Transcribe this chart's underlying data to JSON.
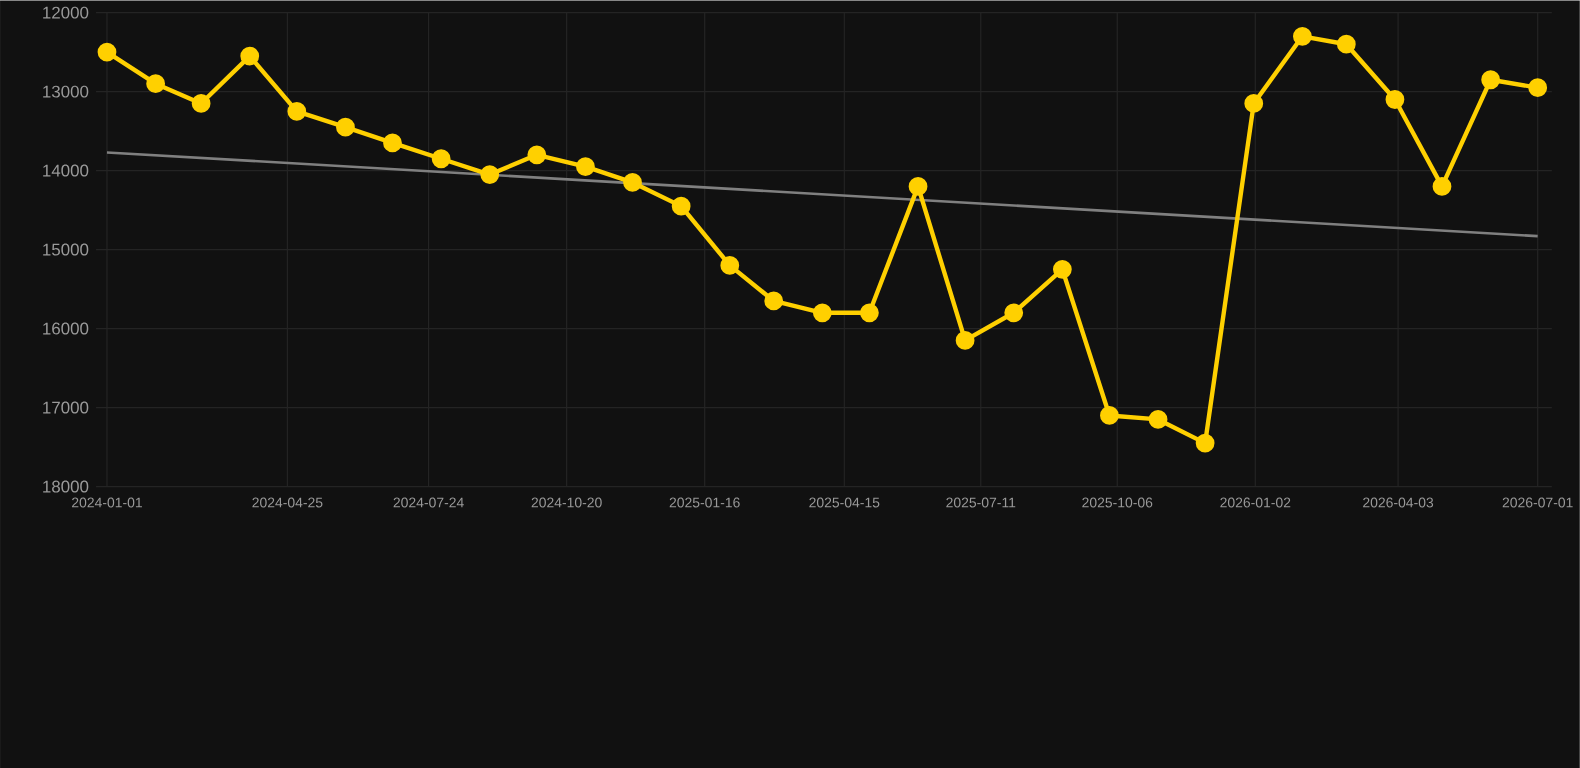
{
  "chart_data": {
    "type": "line",
    "x": [
      "2024-01-01",
      "2024-02-01",
      "2024-03-01",
      "2024-04-01",
      "2024-05-01",
      "2024-06-01",
      "2024-07-01",
      "2024-08-01",
      "2024-09-01",
      "2024-10-01",
      "2024-11-01",
      "2024-12-01",
      "2025-01-01",
      "2025-02-01",
      "2025-03-01",
      "2025-04-01",
      "2025-05-01",
      "2025-06-01",
      "2025-07-01",
      "2025-08-01",
      "2025-09-01",
      "2025-10-01",
      "2025-11-01",
      "2025-12-01",
      "2026-01-01",
      "2026-02-01",
      "2026-03-01",
      "2026-04-01",
      "2026-05-01",
      "2026-06-01",
      "2026-07-01"
    ],
    "series": [
      {
        "color": "#ffd000",
        "values": [
          12500,
          12900,
          13150,
          12550,
          13250,
          13450,
          13650,
          13850,
          14050,
          13800,
          13950,
          14150,
          14450,
          15200,
          15650,
          15800,
          15800,
          14200,
          16150,
          15800,
          15250,
          17100,
          17150,
          17450,
          13150,
          12300,
          12400,
          13100,
          14200,
          12850,
          12950
        ]
      },
      {
        "type": "line",
        "color": "#808080",
        "marker": "none",
        "x": [
          "2024-01-01",
          "2026-07-01"
        ],
        "values": [
          13770,
          14830
        ]
      }
    ],
    "xlim": [
      "2023-12-25",
      "2026-07-10"
    ],
    "xticks": [
      "2024-01-01",
      "2024-04-25",
      "2024-07-24",
      "2024-10-20",
      "2025-01-16",
      "2025-04-15",
      "2025-07-11",
      "2025-10-06",
      "2026-01-02",
      "2026-04-03",
      "2026-07-01"
    ],
    "ylim": [
      18000,
      12000
    ],
    "yticks": [
      12000,
      13000,
      14000,
      15000,
      16000,
      17000,
      18000
    ],
    "grid": true,
    "marker": "circle",
    "line_style": "solid"
  }
}
